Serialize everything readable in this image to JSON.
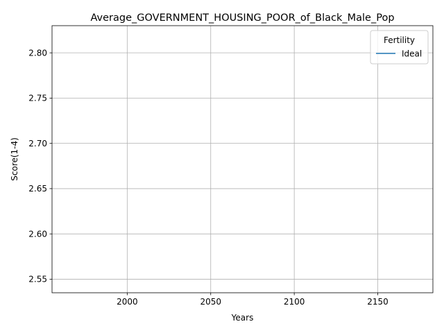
{
  "chart_data": {
    "type": "line",
    "title": "Average_GOVERNMENT_HOUSING_POOR_of_Black_Male_Pop",
    "xlabel": "Years",
    "ylabel": "Score(1-4)",
    "xlim": [
      1955,
      2183
    ],
    "ylim": [
      2.535,
      2.83
    ],
    "xticks": [
      2000,
      2050,
      2100,
      2150
    ],
    "yticks": [
      2.55,
      2.6,
      2.65,
      2.7,
      2.75,
      2.8
    ],
    "ytick_labels": [
      "2.55",
      "2.60",
      "2.65",
      "2.70",
      "2.75",
      "2.80"
    ],
    "grid": true,
    "legend": {
      "title": "Fertility",
      "placement": "top-right",
      "entries": [
        "Ideal"
      ]
    },
    "series": [
      {
        "name": "Ideal",
        "color": "#1f77b4",
        "x": [],
        "y": []
      }
    ]
  }
}
